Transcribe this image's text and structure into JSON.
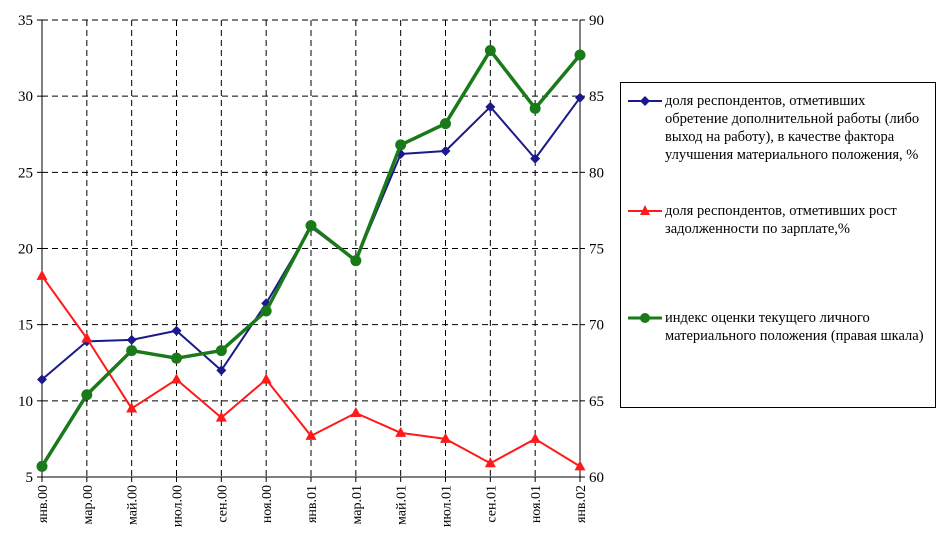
{
  "chart_data": {
    "type": "line",
    "categories": [
      "янв.00",
      "мар.00",
      "май.00",
      "июл.00",
      "сен.00",
      "ноя.00",
      "янв.01",
      "мар.01",
      "май.01",
      "июл.01",
      "сен.01",
      "ноя.01",
      "янв.02"
    ],
    "y_left": {
      "min": 5,
      "max": 35,
      "ticks": [
        5,
        10,
        15,
        20,
        25,
        30,
        35
      ]
    },
    "y_right": {
      "min": 60,
      "max": 90,
      "ticks": [
        60,
        65,
        70,
        75,
        80,
        85,
        90
      ]
    },
    "grid": true,
    "legend_position": "right",
    "series": [
      {
        "name": "доля респондентов, отметивших обретение дополнительной работы (либо выход на работу), в качестве фактора улучшения материального положения, %",
        "axis": "left",
        "marker": "diamond",
        "color": "#1a1a8c",
        "values": [
          11.4,
          13.9,
          14.0,
          14.6,
          12.0,
          16.4,
          21.4,
          19.2,
          26.2,
          26.4,
          29.3,
          25.9,
          29.9
        ]
      },
      {
        "name": "доля респондентов, отметивших рост задолженности по зарплате,%",
        "axis": "left",
        "marker": "triangle",
        "color": "#ff1a1a",
        "values": [
          18.2,
          14.1,
          9.5,
          11.4,
          8.9,
          11.4,
          7.7,
          9.2,
          7.9,
          7.5,
          5.9,
          7.5,
          5.7
        ]
      },
      {
        "name": "индекс оценки текущего личного материального положения (правая шкала)",
        "axis": "right",
        "marker": "circle",
        "color": "#1a7a1a",
        "values": [
          60.7,
          65.4,
          68.3,
          67.8,
          68.3,
          70.9,
          76.5,
          74.2,
          81.8,
          83.2,
          88.0,
          84.2,
          87.7
        ]
      }
    ]
  }
}
